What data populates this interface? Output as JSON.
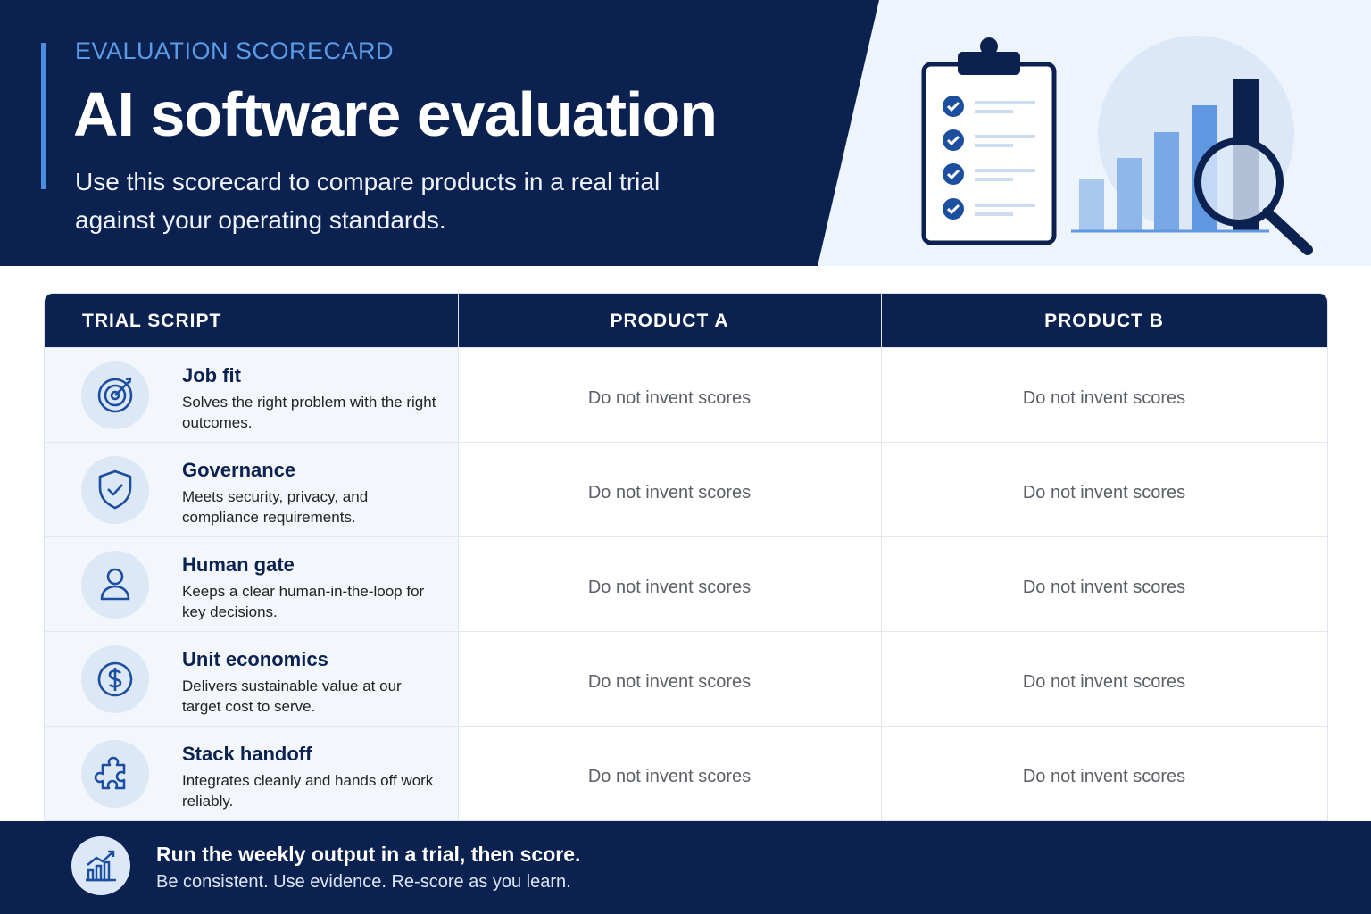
{
  "header": {
    "eyebrow": "EVALUATION SCORECARD",
    "title": "AI software evaluation",
    "subtitle": "Use this scorecard to compare products in a real trial against your operating standards."
  },
  "table": {
    "columns": [
      "TRIAL SCRIPT",
      "PRODUCT A",
      "PRODUCT B"
    ],
    "rows": [
      {
        "title": "Job fit",
        "description": "Solves the right problem with the right outcomes.",
        "product_a": "Do not invent scores",
        "product_b": "Do not invent scores"
      },
      {
        "title": "Governance",
        "description": "Meets security, privacy, and compliance requirements.",
        "product_a": "Do not invent scores",
        "product_b": "Do not invent scores"
      },
      {
        "title": "Human gate",
        "description": "Keeps a clear human-in-the-loop for key decisions.",
        "product_a": "Do not invent scores",
        "product_b": "Do not invent scores"
      },
      {
        "title": "Unit economics",
        "description": "Delivers sustainable value at our target cost to serve.",
        "product_a": "Do not invent scores",
        "product_b": "Do not invent scores"
      },
      {
        "title": "Stack handoff",
        "description": "Integrates cleanly and hands off work reliably.",
        "product_a": "Do not invent scores",
        "product_b": "Do not invent scores"
      }
    ]
  },
  "footer": {
    "title": "Run the weekly output in a trial, then score.",
    "subtitle": "Be consistent. Use evidence. Re-score as you learn."
  }
}
